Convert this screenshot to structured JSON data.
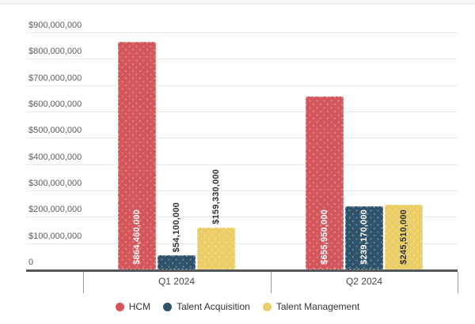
{
  "chart_data": {
    "type": "bar",
    "title": "",
    "categories": [
      "Q1 2024",
      "Q2 2024"
    ],
    "series": [
      {
        "name": "HCM",
        "color": "#d4575b",
        "inside_label_color": "#ffffff",
        "values": [
          864460000,
          655950000
        ],
        "labels": [
          "$864,460,000",
          "$655,950,000"
        ]
      },
      {
        "name": "Talent Acquisition",
        "color": "#30536c",
        "inside_label_color": "#ffffff",
        "values": [
          54100000,
          239170000
        ],
        "labels": [
          "$54,100,000",
          "$239,170,000"
        ]
      },
      {
        "name": "Talent Management",
        "color": "#eacd65",
        "inside_label_color": "#303236",
        "values": [
          159330000,
          245510000
        ],
        "labels": [
          "$159,330,000",
          "$245,510,000"
        ]
      }
    ],
    "y_axis": {
      "min": 0,
      "max": 900000000,
      "ticks": [
        {
          "value": 0,
          "label": "0"
        },
        {
          "value": 100000000,
          "label": "$100,000,000"
        },
        {
          "value": 200000000,
          "label": "$200,000,000"
        },
        {
          "value": 300000000,
          "label": "$300,000,000"
        },
        {
          "value": 400000000,
          "label": "$400,000,000"
        },
        {
          "value": 500000000,
          "label": "$500,000,000"
        },
        {
          "value": 600000000,
          "label": "$600,000,000"
        },
        {
          "value": 700000000,
          "label": "$700,000,000"
        },
        {
          "value": 800000000,
          "label": "$800,000,000"
        },
        {
          "value": 900000000,
          "label": "$900,000,000"
        }
      ]
    },
    "xlabel": "",
    "ylabel": "",
    "grid": true,
    "legend_position": "bottom",
    "outside_label_color": "#2f3135"
  },
  "colors": {
    "axis_line": "#54565a",
    "gridline": "#e9e9e9",
    "separator": "#9b9b9b",
    "axis_text": "#5b5c5f",
    "category_text": "#45474b",
    "legend_text": "#323438",
    "top_band": "#f6f7f7",
    "top_band_border": "#e5e6e6"
  }
}
